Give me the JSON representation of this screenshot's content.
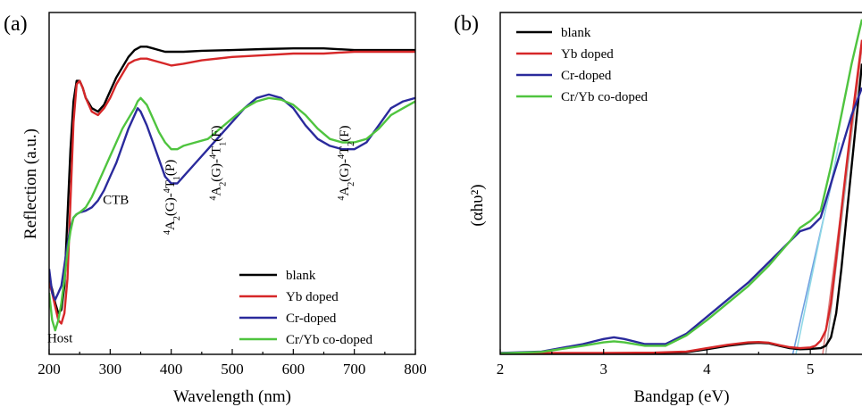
{
  "chart_data": [
    {
      "type": "line",
      "panel_label": "(a)",
      "xlabel": "Wavelength (nm)",
      "ylabel": "Reflection (a.u.)",
      "xlim": [
        200,
        800
      ],
      "ylim": [
        0,
        1
      ],
      "xticks": [
        "200",
        "300",
        "400",
        "500",
        "600",
        "700",
        "800"
      ],
      "legend_position": "bottom-right",
      "annotations": [
        {
          "name": "host",
          "label": "Host",
          "x": 197,
          "y": 0.035
        },
        {
          "name": "ctb",
          "label": "CTB",
          "x": 288,
          "y": 0.44
        },
        {
          "name": "t1p",
          "label": "4A2(G)-4T1(P)",
          "x": 405,
          "y": 0.35,
          "vertical": true
        },
        {
          "name": "t1f",
          "label": "4A2(G)-4T1(F)",
          "x": 480,
          "y": 0.45,
          "vertical": true
        },
        {
          "name": "t2f",
          "label": "4A2(G)-4T2(F)",
          "x": 690,
          "y": 0.45,
          "vertical": true
        }
      ],
      "series": [
        {
          "name": "blank",
          "color": "#000000",
          "x": [
            200,
            205,
            210,
            215,
            220,
            225,
            230,
            235,
            240,
            245,
            250,
            255,
            260,
            270,
            280,
            290,
            300,
            310,
            320,
            330,
            340,
            350,
            360,
            370,
            380,
            390,
            400,
            420,
            450,
            500,
            550,
            600,
            650,
            700,
            750,
            800
          ],
          "y": [
            0.22,
            0.19,
            0.15,
            0.12,
            0.13,
            0.2,
            0.4,
            0.6,
            0.74,
            0.8,
            0.8,
            0.78,
            0.75,
            0.72,
            0.71,
            0.73,
            0.77,
            0.81,
            0.84,
            0.87,
            0.89,
            0.9,
            0.9,
            0.895,
            0.89,
            0.885,
            0.885,
            0.885,
            0.888,
            0.89,
            0.893,
            0.895,
            0.895,
            0.89,
            0.89,
            0.89
          ]
        },
        {
          "name": "Yb doped",
          "color": "#d62728",
          "x": [
            200,
            205,
            210,
            215,
            220,
            225,
            230,
            235,
            240,
            245,
            250,
            255,
            260,
            270,
            280,
            290,
            300,
            310,
            320,
            330,
            340,
            350,
            360,
            370,
            380,
            390,
            400,
            420,
            450,
            500,
            550,
            600,
            650,
            700,
            750,
            800
          ],
          "y": [
            0.21,
            0.18,
            0.14,
            0.1,
            0.09,
            0.12,
            0.22,
            0.45,
            0.68,
            0.79,
            0.8,
            0.78,
            0.75,
            0.71,
            0.7,
            0.72,
            0.75,
            0.79,
            0.82,
            0.85,
            0.86,
            0.865,
            0.865,
            0.86,
            0.855,
            0.85,
            0.845,
            0.85,
            0.86,
            0.87,
            0.875,
            0.88,
            0.88,
            0.885,
            0.885,
            0.885
          ]
        },
        {
          "name": "Cr-doped",
          "color": "#2a2a9c",
          "x": [
            200,
            205,
            210,
            215,
            220,
            225,
            230,
            235,
            240,
            245,
            250,
            260,
            270,
            280,
            290,
            300,
            310,
            320,
            330,
            340,
            345,
            350,
            360,
            370,
            380,
            390,
            400,
            410,
            420,
            440,
            460,
            480,
            500,
            520,
            540,
            560,
            580,
            600,
            620,
            640,
            660,
            680,
            700,
            720,
            740,
            760,
            780,
            800
          ],
          "y": [
            0.25,
            0.18,
            0.16,
            0.18,
            0.2,
            0.26,
            0.32,
            0.37,
            0.4,
            0.41,
            0.415,
            0.42,
            0.43,
            0.45,
            0.48,
            0.52,
            0.56,
            0.61,
            0.66,
            0.7,
            0.72,
            0.71,
            0.67,
            0.62,
            0.57,
            0.52,
            0.5,
            0.5,
            0.52,
            0.56,
            0.6,
            0.64,
            0.68,
            0.72,
            0.75,
            0.76,
            0.75,
            0.72,
            0.67,
            0.63,
            0.61,
            0.6,
            0.6,
            0.62,
            0.67,
            0.72,
            0.74,
            0.75
          ]
        },
        {
          "name": "Cr/Yb co-doped",
          "color": "#4fc43f",
          "x": [
            200,
            205,
            210,
            215,
            220,
            225,
            230,
            235,
            240,
            245,
            250,
            260,
            270,
            280,
            290,
            300,
            310,
            320,
            330,
            340,
            345,
            350,
            360,
            370,
            380,
            390,
            400,
            410,
            420,
            440,
            460,
            480,
            500,
            520,
            540,
            560,
            580,
            600,
            620,
            640,
            660,
            680,
            700,
            720,
            740,
            760,
            780,
            800
          ],
          "y": [
            0.18,
            0.1,
            0.07,
            0.1,
            0.15,
            0.22,
            0.3,
            0.36,
            0.4,
            0.41,
            0.415,
            0.43,
            0.46,
            0.5,
            0.54,
            0.58,
            0.62,
            0.66,
            0.69,
            0.72,
            0.74,
            0.75,
            0.73,
            0.69,
            0.65,
            0.62,
            0.6,
            0.6,
            0.61,
            0.62,
            0.63,
            0.66,
            0.69,
            0.72,
            0.74,
            0.75,
            0.745,
            0.73,
            0.7,
            0.66,
            0.63,
            0.62,
            0.62,
            0.63,
            0.66,
            0.7,
            0.72,
            0.74
          ]
        }
      ]
    },
    {
      "type": "line",
      "panel_label": "(b)",
      "xlabel": "Bandgap (eV)",
      "ylabel": "(αhυ²)",
      "xlim": [
        2,
        5.5
      ],
      "ylim": [
        0,
        1
      ],
      "xticks": [
        "2",
        "3",
        "4",
        "5"
      ],
      "legend_position": "top-left",
      "series": [
        {
          "name": "blank",
          "color": "#000000",
          "x": [
            2.0,
            2.5,
            3.0,
            3.5,
            3.8,
            4.0,
            4.2,
            4.4,
            4.5,
            4.6,
            4.7,
            4.8,
            4.9,
            5.0,
            5.1,
            5.15,
            5.2,
            5.25,
            5.3,
            5.35,
            5.4,
            5.45,
            5.5
          ],
          "y": [
            0.003,
            0.003,
            0.003,
            0.004,
            0.006,
            0.015,
            0.025,
            0.032,
            0.034,
            0.032,
            0.025,
            0.018,
            0.015,
            0.016,
            0.018,
            0.025,
            0.05,
            0.12,
            0.25,
            0.4,
            0.55,
            0.7,
            0.85
          ]
        },
        {
          "name": "Yb doped",
          "color": "#d62728",
          "x": [
            2.0,
            2.5,
            3.0,
            3.5,
            3.8,
            4.0,
            4.2,
            4.4,
            4.5,
            4.6,
            4.7,
            4.8,
            4.9,
            5.0,
            5.05,
            5.1,
            5.15,
            5.2,
            5.25,
            5.3,
            5.35,
            5.4,
            5.45,
            5.5
          ],
          "y": [
            0.004,
            0.004,
            0.004,
            0.005,
            0.008,
            0.018,
            0.028,
            0.035,
            0.036,
            0.034,
            0.027,
            0.021,
            0.018,
            0.02,
            0.025,
            0.04,
            0.07,
            0.15,
            0.28,
            0.42,
            0.55,
            0.68,
            0.8,
            0.92
          ]
        },
        {
          "name": "Cr-doped",
          "color": "#2a2a9c",
          "x": [
            2.0,
            2.4,
            2.8,
            3.0,
            3.1,
            3.2,
            3.4,
            3.6,
            3.8,
            4.0,
            4.2,
            4.4,
            4.6,
            4.8,
            4.9,
            5.0,
            5.1,
            5.2,
            5.3,
            5.4,
            5.5
          ],
          "y": [
            0.004,
            0.008,
            0.03,
            0.045,
            0.05,
            0.045,
            0.03,
            0.03,
            0.06,
            0.11,
            0.16,
            0.21,
            0.27,
            0.33,
            0.36,
            0.37,
            0.4,
            0.5,
            0.6,
            0.7,
            0.78
          ]
        },
        {
          "name": "Cr/Yb co-doped",
          "color": "#4fc43f",
          "x": [
            2.0,
            2.4,
            2.8,
            3.0,
            3.1,
            3.2,
            3.4,
            3.6,
            3.8,
            4.0,
            4.2,
            4.4,
            4.6,
            4.8,
            4.9,
            5.0,
            5.1,
            5.2,
            5.3,
            5.4,
            5.5
          ],
          "y": [
            0.003,
            0.007,
            0.025,
            0.035,
            0.038,
            0.035,
            0.025,
            0.025,
            0.055,
            0.1,
            0.15,
            0.2,
            0.26,
            0.33,
            0.37,
            0.39,
            0.42,
            0.55,
            0.7,
            0.85,
            0.98
          ]
        }
      ],
      "fit_lines": [
        {
          "color": "#b0b0b0",
          "x": [
            5.15,
            5.5
          ],
          "y": [
            0,
            0.9
          ]
        },
        {
          "color": "#e08080",
          "x": [
            5.12,
            5.5
          ],
          "y": [
            0,
            0.9
          ]
        },
        {
          "color": "#6f9fe0",
          "x": [
            4.83,
            5.22
          ],
          "y": [
            0,
            0.52
          ]
        },
        {
          "color": "#8fd8e6",
          "x": [
            4.86,
            5.28
          ],
          "y": [
            0,
            0.62
          ]
        }
      ]
    }
  ]
}
